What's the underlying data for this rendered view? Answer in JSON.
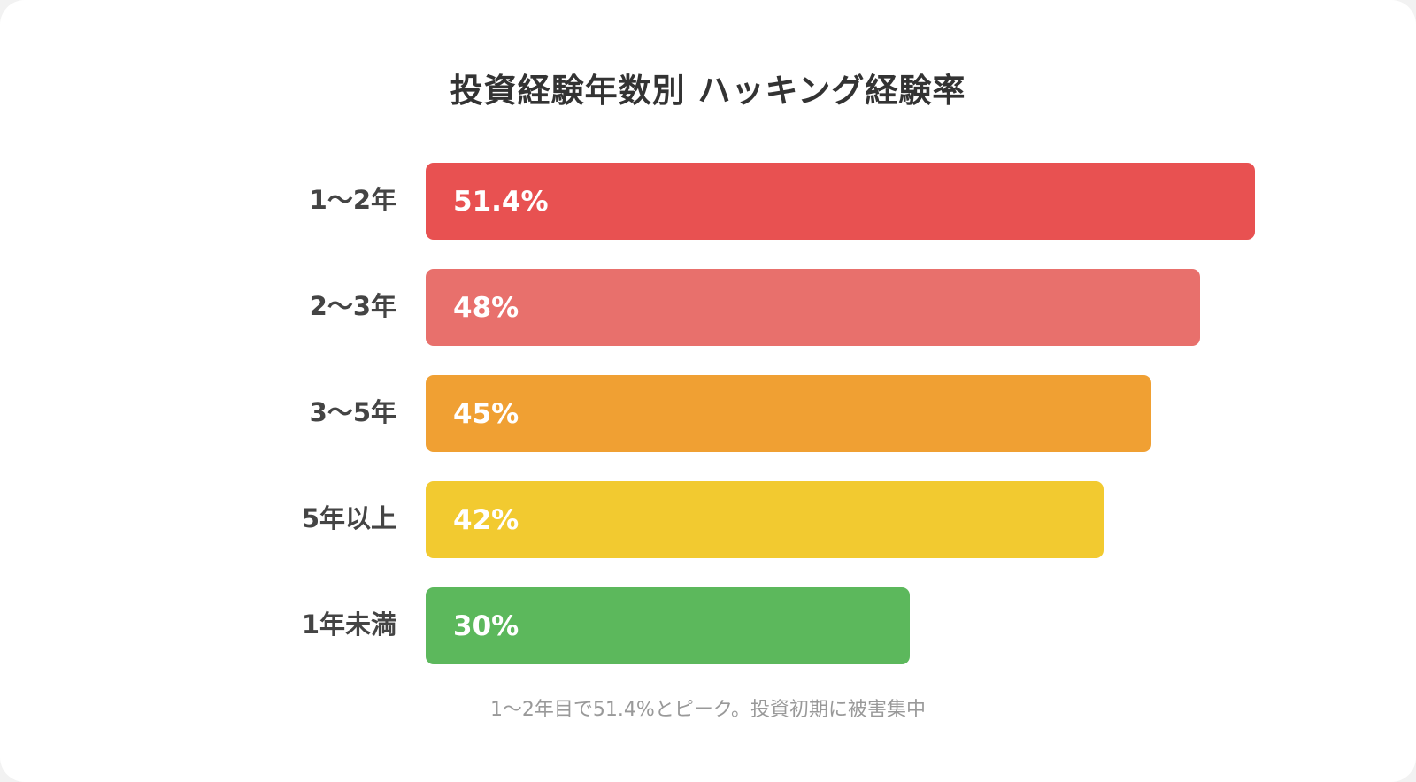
{
  "chart_data": {
    "type": "bar",
    "orientation": "horizontal",
    "title": "投資経験年数別 ハッキング経験率",
    "categories": [
      "1〜2年",
      "2〜3年",
      "3〜5年",
      "5年以上",
      "1年未満"
    ],
    "values": [
      51.4,
      48,
      45,
      42,
      30
    ],
    "value_labels": [
      "51.4%",
      "48%",
      "45%",
      "42%",
      "30%"
    ],
    "colors": [
      "#e85151",
      "#e8706c",
      "#f0a033",
      "#f2ca30",
      "#5cb85c"
    ],
    "xlim": [
      0,
      51.4
    ],
    "xlabel": "",
    "ylabel": "",
    "grid": false,
    "legend": "none"
  },
  "caption": "1〜2年目で51.4%とピーク。投資初期に被害集中"
}
